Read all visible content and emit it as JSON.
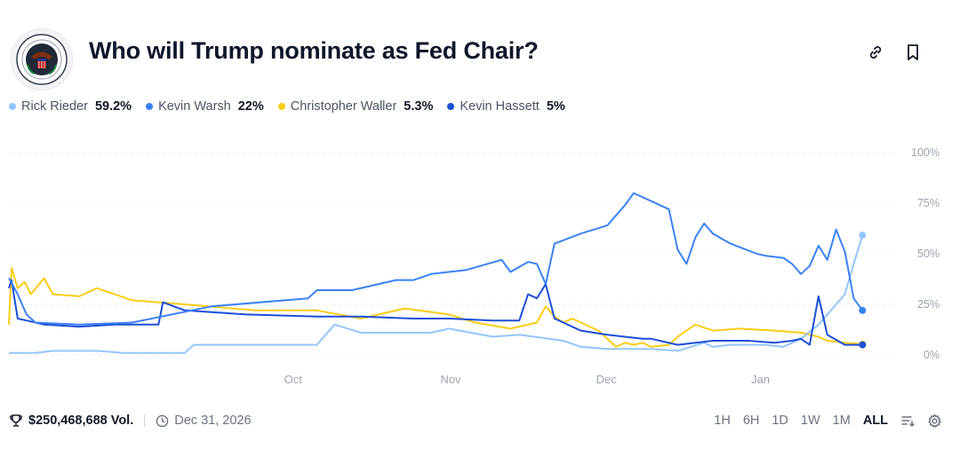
{
  "header": {
    "title": "Who will Trump nominate as Fed Chair?"
  },
  "legend": [
    {
      "name": "Rick Rieder",
      "value": "59.2%",
      "color": "#93c5fd"
    },
    {
      "name": "Kevin Warsh",
      "value": "22%",
      "color": "#3b82f6"
    },
    {
      "name": "Christopher Waller",
      "value": "5.3%",
      "color": "#facc15"
    },
    {
      "name": "Kevin Hassett",
      "value": "5%",
      "color": "#1d4ed8"
    }
  ],
  "footer": {
    "volume": "$250,468,688 Vol.",
    "end_date": "Dec 31, 2026",
    "ranges": [
      "1H",
      "6H",
      "1D",
      "1W",
      "1M",
      "ALL"
    ],
    "active_range": "ALL"
  },
  "chart_data": {
    "type": "line",
    "x_tick_labels": [
      "Oct",
      "Nov",
      "Dec",
      "Jan"
    ],
    "y_tick_labels": [
      "100%",
      "75%",
      "50%",
      "25%",
      "0%"
    ],
    "ylim": [
      0,
      100
    ],
    "grid": true,
    "series": [
      {
        "name": "Rick Rieder",
        "color": "#93c5fd",
        "x": [
          0,
          3,
          5,
          10,
          13,
          20,
          21,
          35,
          37,
          40,
          48,
          50,
          55,
          58,
          63,
          65,
          68,
          70,
          73,
          76,
          79,
          80,
          82,
          86,
          88,
          90,
          92,
          95,
          96,
          97
        ],
        "y": [
          1,
          1,
          2,
          2,
          1,
          1,
          5,
          5,
          15,
          11,
          11,
          13,
          9,
          10,
          7,
          4,
          3,
          3,
          3,
          2,
          6,
          4,
          5,
          5,
          4,
          8,
          15,
          30,
          45,
          59.2
        ]
      },
      {
        "name": "Kevin Warsh",
        "color": "#3b82f6",
        "x": [
          0,
          1,
          2,
          3,
          8,
          14,
          23,
          34,
          35,
          39,
          44,
          46,
          48,
          52,
          56,
          57,
          59,
          60,
          61,
          62,
          65,
          68,
          70,
          71,
          73,
          74,
          75,
          76,
          77,
          78,
          79,
          80,
          82,
          85,
          86,
          88,
          89,
          90,
          91,
          92,
          93,
          94,
          95,
          96,
          97
        ],
        "y": [
          38,
          30,
          20,
          16,
          15,
          16,
          24,
          28,
          32,
          32,
          37,
          37,
          40,
          42,
          47,
          41,
          46,
          45,
          35,
          55,
          60,
          64,
          74,
          80,
          76,
          74,
          72,
          52,
          45,
          58,
          65,
          60,
          55,
          50,
          49,
          48,
          45,
          40,
          44,
          54,
          47,
          62,
          51,
          28,
          22
        ]
      },
      {
        "name": "Christopher Waller",
        "color": "#facc15",
        "x": [
          0,
          0.3,
          1,
          1.8,
          2.5,
          4,
          5,
          8,
          10,
          14,
          20,
          28,
          35,
          40,
          45,
          50,
          53,
          57,
          60,
          61,
          62,
          63,
          64,
          67,
          69,
          70,
          71,
          72,
          73,
          75,
          76,
          78,
          80,
          83,
          87,
          90,
          92,
          93,
          95,
          97
        ],
        "y": [
          15,
          43,
          33,
          36,
          30,
          38,
          30,
          29,
          33,
          27,
          25,
          22,
          22,
          18,
          23,
          20,
          16,
          13,
          16,
          24,
          19,
          16,
          18,
          12,
          4,
          6,
          5,
          6,
          4,
          5,
          9,
          15,
          12,
          13,
          12,
          11,
          9,
          7,
          6,
          5.3
        ]
      },
      {
        "name": "Kevin Hassett",
        "color": "#1d4ed8",
        "x": [
          0,
          0.3,
          1,
          2,
          4,
          8,
          12,
          17,
          17.5,
          20,
          27,
          35,
          40,
          46,
          50,
          55,
          58,
          59,
          60,
          61,
          62,
          65,
          68,
          70,
          72,
          73,
          76,
          80,
          84,
          87,
          89,
          90,
          91,
          92,
          93,
          95,
          97
        ],
        "y": [
          33,
          37,
          18,
          17,
          15,
          14,
          15,
          15,
          26,
          22,
          20,
          19,
          19,
          18,
          18,
          17,
          17,
          30,
          28,
          35,
          18,
          12,
          10,
          9,
          8,
          8,
          5,
          7,
          7,
          6,
          7,
          8,
          5,
          29,
          10,
          5,
          5
        ]
      }
    ]
  }
}
